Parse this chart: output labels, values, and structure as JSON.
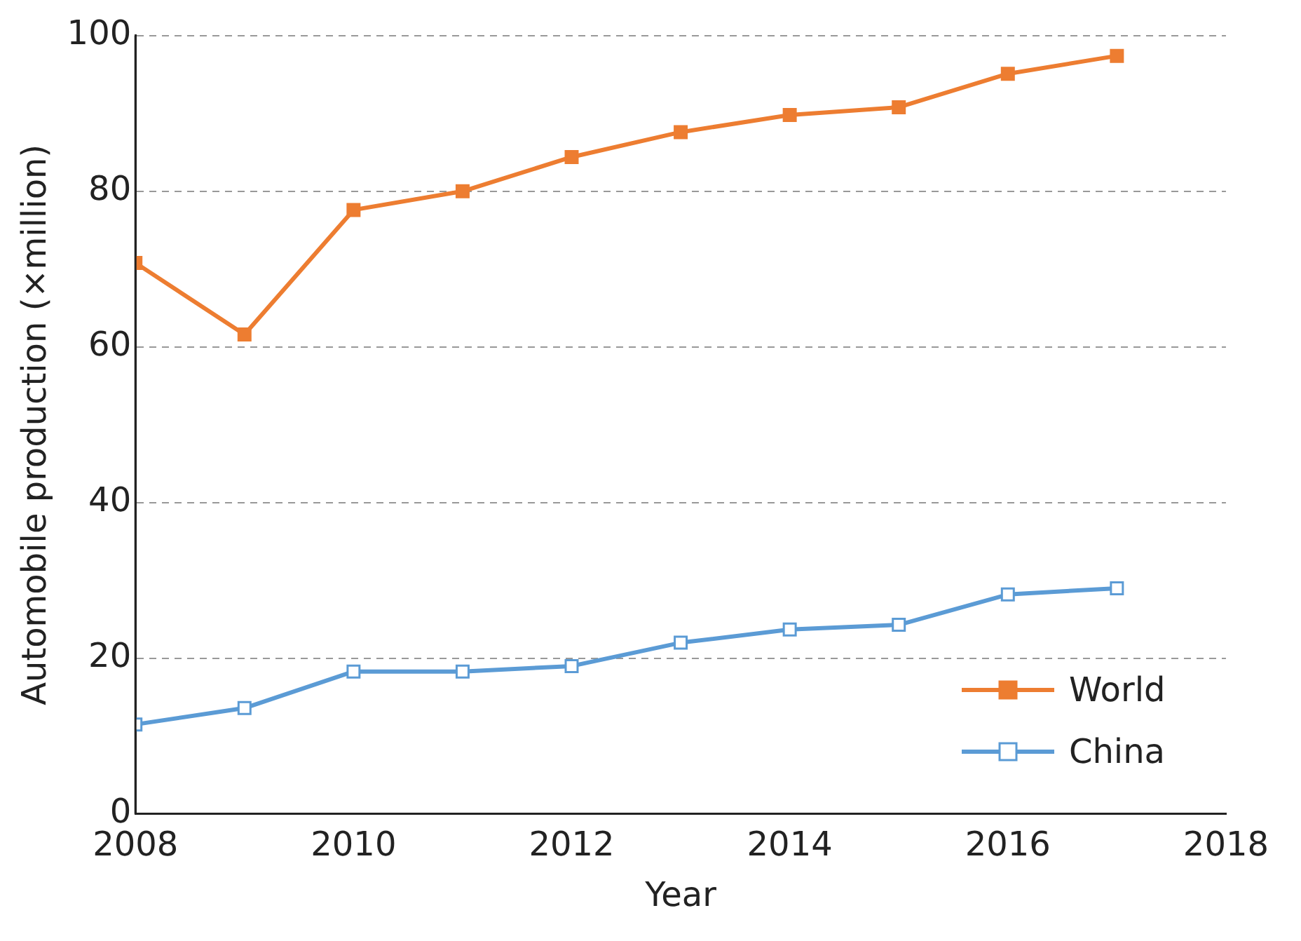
{
  "chart_data": {
    "type": "line",
    "xlabel": "Year",
    "ylabel": "Automobile production (×million)",
    "x": [
      2008,
      2009,
      2010,
      2011,
      2012,
      2013,
      2014,
      2015,
      2016,
      2017
    ],
    "series": [
      {
        "name": "World",
        "color": "#ed7d31",
        "values": [
          70.8,
          61.6,
          77.6,
          80.0,
          84.4,
          87.6,
          89.8,
          90.8,
          95.1,
          97.4
        ],
        "marker": "square"
      },
      {
        "name": "China",
        "color": "#5b9bd5",
        "values": [
          11.5,
          13.6,
          18.3,
          18.3,
          19.0,
          22.0,
          23.7,
          24.3,
          28.2,
          29.0
        ],
        "marker": "square"
      }
    ],
    "xlim": [
      2008,
      2018
    ],
    "xticks": [
      2008,
      2010,
      2012,
      2014,
      2016,
      2018
    ],
    "ylim": [
      0,
      100
    ],
    "yticks": [
      0,
      20,
      40,
      60,
      80,
      100
    ],
    "grid": "y",
    "legend": "bottom right",
    "line_style": "solid"
  }
}
